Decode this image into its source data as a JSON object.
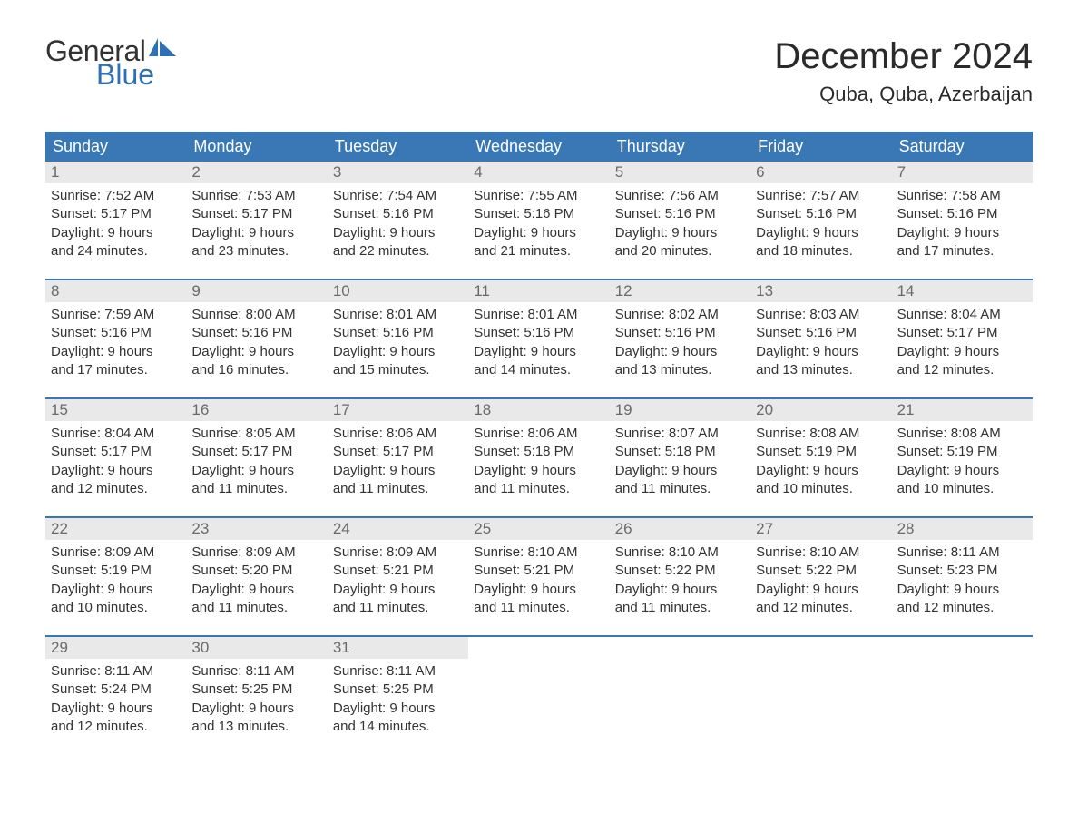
{
  "logo": {
    "general": "General",
    "blue": "Blue"
  },
  "title": "December 2024",
  "location": "Quba, Quba, Azerbaijan",
  "colors": {
    "header_bg": "#3a78b5",
    "header_text": "#ffffff",
    "daynum_bg": "#e9e9e9",
    "daynum_text": "#6a6a6a",
    "body_text": "#333333",
    "accent": "#2f6fb3",
    "week_border": "#3a78b5"
  },
  "fonts": {
    "title_size_pt": 30,
    "location_size_pt": 16,
    "weekday_size_pt": 13,
    "body_size_pt": 11
  },
  "weekdays": [
    "Sunday",
    "Monday",
    "Tuesday",
    "Wednesday",
    "Thursday",
    "Friday",
    "Saturday"
  ],
  "weeks": [
    [
      {
        "n": "1",
        "sunrise": "Sunrise: 7:52 AM",
        "sunset": "Sunset: 5:17 PM",
        "day1": "Daylight: 9 hours",
        "day2": "and 24 minutes."
      },
      {
        "n": "2",
        "sunrise": "Sunrise: 7:53 AM",
        "sunset": "Sunset: 5:17 PM",
        "day1": "Daylight: 9 hours",
        "day2": "and 23 minutes."
      },
      {
        "n": "3",
        "sunrise": "Sunrise: 7:54 AM",
        "sunset": "Sunset: 5:16 PM",
        "day1": "Daylight: 9 hours",
        "day2": "and 22 minutes."
      },
      {
        "n": "4",
        "sunrise": "Sunrise: 7:55 AM",
        "sunset": "Sunset: 5:16 PM",
        "day1": "Daylight: 9 hours",
        "day2": "and 21 minutes."
      },
      {
        "n": "5",
        "sunrise": "Sunrise: 7:56 AM",
        "sunset": "Sunset: 5:16 PM",
        "day1": "Daylight: 9 hours",
        "day2": "and 20 minutes."
      },
      {
        "n": "6",
        "sunrise": "Sunrise: 7:57 AM",
        "sunset": "Sunset: 5:16 PM",
        "day1": "Daylight: 9 hours",
        "day2": "and 18 minutes."
      },
      {
        "n": "7",
        "sunrise": "Sunrise: 7:58 AM",
        "sunset": "Sunset: 5:16 PM",
        "day1": "Daylight: 9 hours",
        "day2": "and 17 minutes."
      }
    ],
    [
      {
        "n": "8",
        "sunrise": "Sunrise: 7:59 AM",
        "sunset": "Sunset: 5:16 PM",
        "day1": "Daylight: 9 hours",
        "day2": "and 17 minutes."
      },
      {
        "n": "9",
        "sunrise": "Sunrise: 8:00 AM",
        "sunset": "Sunset: 5:16 PM",
        "day1": "Daylight: 9 hours",
        "day2": "and 16 minutes."
      },
      {
        "n": "10",
        "sunrise": "Sunrise: 8:01 AM",
        "sunset": "Sunset: 5:16 PM",
        "day1": "Daylight: 9 hours",
        "day2": "and 15 minutes."
      },
      {
        "n": "11",
        "sunrise": "Sunrise: 8:01 AM",
        "sunset": "Sunset: 5:16 PM",
        "day1": "Daylight: 9 hours",
        "day2": "and 14 minutes."
      },
      {
        "n": "12",
        "sunrise": "Sunrise: 8:02 AM",
        "sunset": "Sunset: 5:16 PM",
        "day1": "Daylight: 9 hours",
        "day2": "and 13 minutes."
      },
      {
        "n": "13",
        "sunrise": "Sunrise: 8:03 AM",
        "sunset": "Sunset: 5:16 PM",
        "day1": "Daylight: 9 hours",
        "day2": "and 13 minutes."
      },
      {
        "n": "14",
        "sunrise": "Sunrise: 8:04 AM",
        "sunset": "Sunset: 5:17 PM",
        "day1": "Daylight: 9 hours",
        "day2": "and 12 minutes."
      }
    ],
    [
      {
        "n": "15",
        "sunrise": "Sunrise: 8:04 AM",
        "sunset": "Sunset: 5:17 PM",
        "day1": "Daylight: 9 hours",
        "day2": "and 12 minutes."
      },
      {
        "n": "16",
        "sunrise": "Sunrise: 8:05 AM",
        "sunset": "Sunset: 5:17 PM",
        "day1": "Daylight: 9 hours",
        "day2": "and 11 minutes."
      },
      {
        "n": "17",
        "sunrise": "Sunrise: 8:06 AM",
        "sunset": "Sunset: 5:17 PM",
        "day1": "Daylight: 9 hours",
        "day2": "and 11 minutes."
      },
      {
        "n": "18",
        "sunrise": "Sunrise: 8:06 AM",
        "sunset": "Sunset: 5:18 PM",
        "day1": "Daylight: 9 hours",
        "day2": "and 11 minutes."
      },
      {
        "n": "19",
        "sunrise": "Sunrise: 8:07 AM",
        "sunset": "Sunset: 5:18 PM",
        "day1": "Daylight: 9 hours",
        "day2": "and 11 minutes."
      },
      {
        "n": "20",
        "sunrise": "Sunrise: 8:08 AM",
        "sunset": "Sunset: 5:19 PM",
        "day1": "Daylight: 9 hours",
        "day2": "and 10 minutes."
      },
      {
        "n": "21",
        "sunrise": "Sunrise: 8:08 AM",
        "sunset": "Sunset: 5:19 PM",
        "day1": "Daylight: 9 hours",
        "day2": "and 10 minutes."
      }
    ],
    [
      {
        "n": "22",
        "sunrise": "Sunrise: 8:09 AM",
        "sunset": "Sunset: 5:19 PM",
        "day1": "Daylight: 9 hours",
        "day2": "and 10 minutes."
      },
      {
        "n": "23",
        "sunrise": "Sunrise: 8:09 AM",
        "sunset": "Sunset: 5:20 PM",
        "day1": "Daylight: 9 hours",
        "day2": "and 11 minutes."
      },
      {
        "n": "24",
        "sunrise": "Sunrise: 8:09 AM",
        "sunset": "Sunset: 5:21 PM",
        "day1": "Daylight: 9 hours",
        "day2": "and 11 minutes."
      },
      {
        "n": "25",
        "sunrise": "Sunrise: 8:10 AM",
        "sunset": "Sunset: 5:21 PM",
        "day1": "Daylight: 9 hours",
        "day2": "and 11 minutes."
      },
      {
        "n": "26",
        "sunrise": "Sunrise: 8:10 AM",
        "sunset": "Sunset: 5:22 PM",
        "day1": "Daylight: 9 hours",
        "day2": "and 11 minutes."
      },
      {
        "n": "27",
        "sunrise": "Sunrise: 8:10 AM",
        "sunset": "Sunset: 5:22 PM",
        "day1": "Daylight: 9 hours",
        "day2": "and 12 minutes."
      },
      {
        "n": "28",
        "sunrise": "Sunrise: 8:11 AM",
        "sunset": "Sunset: 5:23 PM",
        "day1": "Daylight: 9 hours",
        "day2": "and 12 minutes."
      }
    ],
    [
      {
        "n": "29",
        "sunrise": "Sunrise: 8:11 AM",
        "sunset": "Sunset: 5:24 PM",
        "day1": "Daylight: 9 hours",
        "day2": "and 12 minutes."
      },
      {
        "n": "30",
        "sunrise": "Sunrise: 8:11 AM",
        "sunset": "Sunset: 5:25 PM",
        "day1": "Daylight: 9 hours",
        "day2": "and 13 minutes."
      },
      {
        "n": "31",
        "sunrise": "Sunrise: 8:11 AM",
        "sunset": "Sunset: 5:25 PM",
        "day1": "Daylight: 9 hours",
        "day2": "and 14 minutes."
      },
      {
        "empty": true
      },
      {
        "empty": true
      },
      {
        "empty": true
      },
      {
        "empty": true
      }
    ]
  ]
}
